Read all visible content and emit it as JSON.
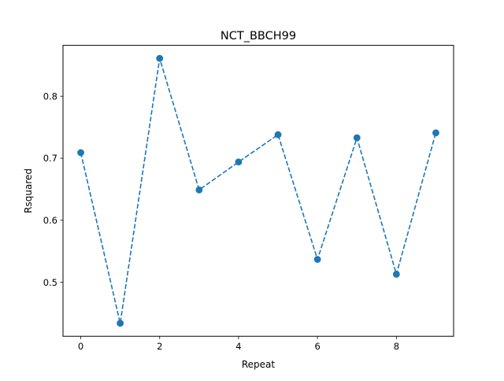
{
  "chart_data": {
    "type": "line",
    "title": "NCT_BBCH99",
    "xlabel": "Repeat",
    "ylabel": "Rsquared",
    "x": [
      0,
      1,
      2,
      3,
      4,
      5,
      6,
      7,
      8,
      9
    ],
    "series": [
      {
        "values": [
          0.709,
          0.434,
          0.861,
          0.649,
          0.694,
          0.738,
          0.537,
          0.733,
          0.513,
          0.741
        ],
        "color": "#1f77b4",
        "line_style": "dashed",
        "marker": "circle"
      }
    ],
    "xlim": [
      -0.45,
      9.45
    ],
    "ylim": [
      0.413,
      0.882
    ],
    "x_ticks": [
      0,
      2,
      4,
      6,
      8
    ],
    "y_ticks": [
      0.5,
      0.6,
      0.7,
      0.8
    ],
    "x_tick_labels": [
      "0",
      "2",
      "4",
      "6",
      "8"
    ],
    "y_tick_labels": [
      "0.5",
      "0.6",
      "0.7",
      "0.8"
    ],
    "grid": false,
    "legend": "none"
  }
}
